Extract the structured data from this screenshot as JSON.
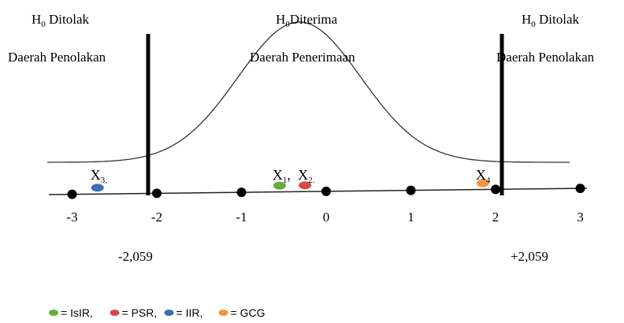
{
  "header": {
    "left_region": {
      "hypothesis_main": "H",
      "hypothesis_sub": "0",
      "hypothesis_tail": " Ditolak",
      "area": "Daerah Penolakan"
    },
    "center_region": {
      "hypothesis_main": "H",
      "hypothesis_sub": "0",
      "hypothesis_tail": "Diterima",
      "area": "Daerah Penerimaan"
    },
    "right_region": {
      "hypothesis_main": "H",
      "hypothesis_sub": "0",
      "hypothesis_tail": " Ditolak",
      "area": "Daerah Penolakan"
    }
  },
  "axis": {
    "ticks": [
      "-3",
      "-2",
      "-1",
      "0",
      "1",
      "2",
      "3"
    ],
    "tick_values": [
      -3,
      -2,
      -1,
      0,
      1,
      2,
      3
    ],
    "critical_left": "-2,059",
    "critical_right": "+2,059",
    "critical_values": [
      -2.059,
      2.059
    ]
  },
  "points": [
    {
      "label_main": "X",
      "label_sub": "3,",
      "value": -2.7,
      "color": "#3a6fb5"
    },
    {
      "label_main": "X",
      "label_sub": "1",
      "label_tail": ",",
      "value": -0.55,
      "color": "#6aaa3a"
    },
    {
      "label_main": "X",
      "label_sub": "2.",
      "value": -0.25,
      "color": "#d6494b"
    },
    {
      "label_main": "X",
      "label_sub": "4",
      "value": 1.85,
      "color": "#f0963c"
    }
  ],
  "legend": [
    {
      "text": "= IsIR,",
      "color": "#6aaa3a"
    },
    {
      "text": "= PSR,",
      "color": "#d6494b"
    },
    {
      "text": "= IIR,",
      "color": "#3a6fb5"
    },
    {
      "text": "= GCG",
      "color": "#f0963c"
    }
  ]
}
